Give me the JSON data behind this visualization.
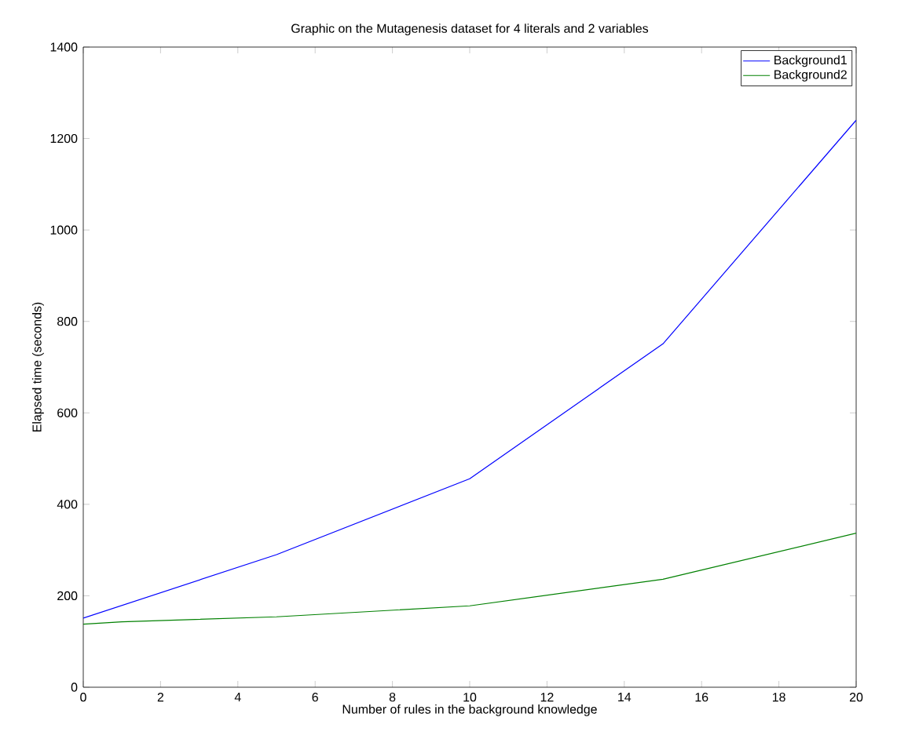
{
  "chart_data": {
    "type": "line",
    "title": "Graphic on the Mutagenesis dataset for 4 literals and 2 variables",
    "xlabel": "Number of rules in the background knowledge",
    "ylabel": "Elapsed time (seconds)",
    "xlim": [
      0,
      20
    ],
    "ylim": [
      0,
      1400
    ],
    "xticks": [
      0,
      2,
      4,
      6,
      8,
      10,
      12,
      14,
      16,
      18,
      20
    ],
    "yticks": [
      0,
      200,
      400,
      600,
      800,
      1000,
      1200,
      1400
    ],
    "grid": false,
    "legend": "top right",
    "marker": "none",
    "line_style": "solid",
    "series": [
      {
        "name": "Background1",
        "color": "#0000ff",
        "x": [
          0,
          5,
          10,
          15,
          20
        ],
        "values": [
          151,
          290,
          456,
          751,
          1240
        ]
      },
      {
        "name": "Background2",
        "color": "#008000",
        "x": [
          0,
          1,
          5,
          10,
          15,
          20
        ],
        "values": [
          138,
          143,
          154,
          178,
          236,
          337
        ]
      }
    ]
  }
}
